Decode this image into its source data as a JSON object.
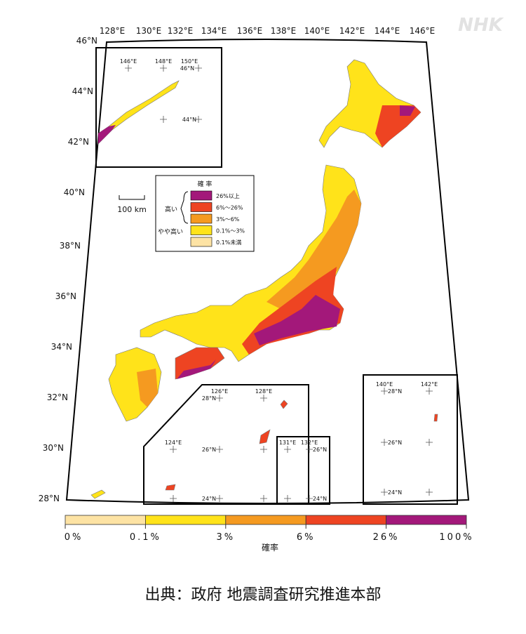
{
  "logo": "NHK",
  "map": {
    "lon_labels": [
      "128°E",
      "130°E",
      "132°E",
      "134°E",
      "136°E",
      "138°E",
      "140°E",
      "142°E",
      "144°E",
      "146°E"
    ],
    "lat_labels": [
      "46°N",
      "44°N",
      "42°N",
      "40°N",
      "38°N",
      "36°N",
      "34°N",
      "32°N",
      "30°N",
      "28°N"
    ],
    "scale_bar": "100 km",
    "legend": {
      "title": "確 率",
      "groups": [
        "高い",
        "やや高い"
      ],
      "items": [
        "26%以上",
        "6%〜26%",
        "3%〜6%",
        "0.1%〜3%",
        "0.1%未満"
      ],
      "colors": [
        "#a3187a",
        "#ee4422",
        "#f59a20",
        "#ffe31a",
        "#fde3a4"
      ]
    },
    "insets": [
      {
        "labels": [
          "146°E",
          "148°E",
          "150°E",
          "46°N",
          "44°N"
        ]
      },
      {
        "labels": [
          "126°E",
          "128°E",
          "28°N",
          "124°E",
          "26°N",
          "24°N"
        ]
      },
      {
        "labels": [
          "131°E",
          "132°E",
          "26°N",
          "24°N"
        ]
      },
      {
        "labels": [
          "140°E",
          "142°E",
          "28°N",
          "26°N",
          "24°N"
        ]
      }
    ]
  },
  "colorbar": {
    "labels": [
      "0%",
      "0.1%",
      "3%",
      "6%",
      "26%",
      "100%"
    ],
    "colors": [
      "#fde3a4",
      "#ffe31a",
      "#f59a20",
      "#ee4422",
      "#a3187a"
    ],
    "title": "確率"
  },
  "caption": "出典：政府 地震調査研究推進本部"
}
